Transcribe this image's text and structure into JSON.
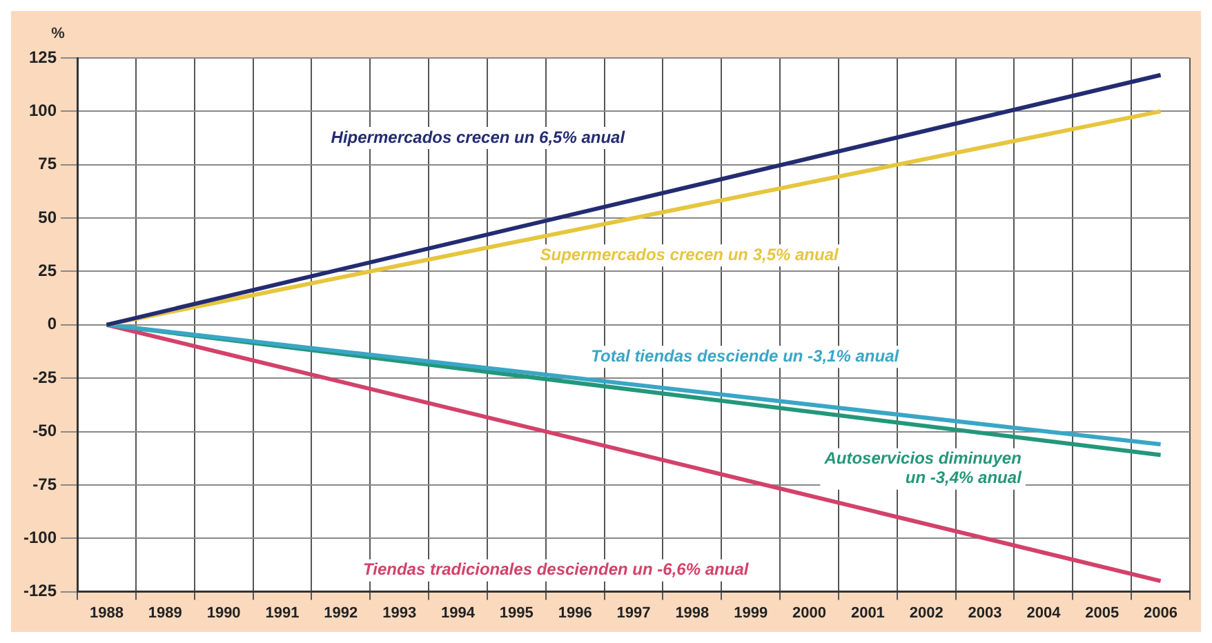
{
  "chart_data": {
    "type": "line",
    "ylabel": "%",
    "categories": [
      "1988",
      "1989",
      "1990",
      "1991",
      "1992",
      "1993",
      "1994",
      "1995",
      "1996",
      "1997",
      "1998",
      "1999",
      "2000",
      "2001",
      "2002",
      "2003",
      "2004",
      "2005",
      "2006"
    ],
    "series": [
      {
        "name": "Hipermercados crecen un 6,5% anual",
        "color": "#232c72",
        "values": [
          0,
          null,
          null,
          null,
          null,
          null,
          null,
          null,
          null,
          null,
          null,
          null,
          null,
          null,
          null,
          null,
          null,
          null,
          117
        ]
      },
      {
        "name": "Supermercados crecen un 3,5% anual",
        "color": "#e6c63e",
        "values": [
          0,
          null,
          null,
          null,
          null,
          null,
          null,
          null,
          null,
          null,
          null,
          null,
          null,
          null,
          null,
          null,
          null,
          null,
          100
        ]
      },
      {
        "name": "Total tiendas desciende un -3,1% anual",
        "color": "#3aa6c6",
        "values": [
          0,
          null,
          null,
          null,
          null,
          null,
          null,
          null,
          null,
          null,
          null,
          null,
          null,
          null,
          null,
          null,
          null,
          null,
          -56
        ]
      },
      {
        "name": "Autoservicios diminuyen\nun -3,4% anual",
        "color": "#23977a",
        "values": [
          0,
          null,
          null,
          null,
          null,
          null,
          null,
          null,
          null,
          null,
          null,
          null,
          null,
          null,
          null,
          null,
          null,
          null,
          -61
        ]
      },
      {
        "name": "Tiendas tradicionales descienden un -6,6% anual",
        "color": "#d2426a",
        "values": [
          0,
          null,
          null,
          null,
          null,
          null,
          null,
          null,
          null,
          null,
          null,
          null,
          null,
          null,
          null,
          null,
          null,
          null,
          -120
        ]
      }
    ],
    "ylim": [
      -125,
      125
    ],
    "yticks": [
      -125,
      -100,
      -75,
      -50,
      -25,
      0,
      25,
      50,
      75,
      100,
      125
    ],
    "grid": true,
    "legend": false,
    "marker": "none",
    "line_style": "solid"
  }
}
